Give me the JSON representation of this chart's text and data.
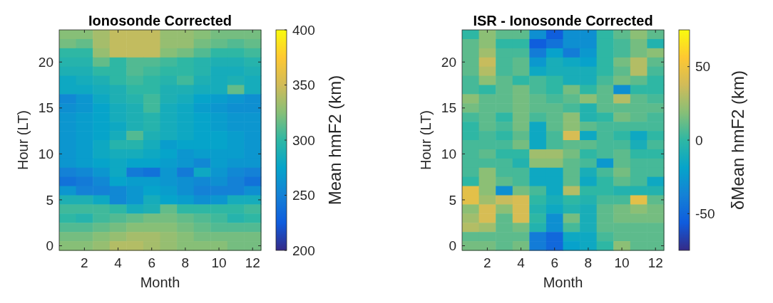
{
  "chart_data": [
    {
      "type": "heatmap",
      "title": "Ionosonde Corrected",
      "xlabel": "Month",
      "ylabel": "Hour (LT)",
      "clabel": "Mean hmF2 (km)",
      "categories": [
        null,
        "2",
        null,
        "4",
        null,
        "6",
        null,
        "8",
        null,
        "10",
        null,
        "12"
      ],
      "y_categories": [
        null,
        null,
        null,
        "20",
        null,
        null,
        null,
        null,
        "15",
        null,
        null,
        null,
        null,
        "10",
        null,
        null,
        null,
        null,
        "5",
        null,
        null,
        null,
        null,
        "0"
      ],
      "clim": [
        200,
        400
      ],
      "cticks": [
        200,
        250,
        300,
        350,
        400
      ],
      "cells": [
        [
          325,
          325,
          335,
          345,
          345,
          345,
          330,
          330,
          325,
          320,
          320,
          320
        ],
        [
          320,
          315,
          335,
          345,
          345,
          345,
          330,
          330,
          320,
          315,
          310,
          315
        ],
        [
          300,
          300,
          330,
          345,
          345,
          345,
          325,
          320,
          310,
          300,
          300,
          305
        ],
        [
          295,
          295,
          315,
          300,
          310,
          310,
          305,
          300,
          295,
          290,
          290,
          295
        ],
        [
          290,
          290,
          300,
          300,
          310,
          305,
          300,
          300,
          295,
          285,
          285,
          290
        ],
        [
          280,
          285,
          290,
          300,
          305,
          300,
          295,
          305,
          290,
          285,
          290,
          285
        ],
        [
          280,
          280,
          285,
          290,
          300,
          300,
          290,
          290,
          285,
          285,
          315,
          285
        ],
        [
          255,
          265,
          280,
          290,
          295,
          305,
          290,
          285,
          275,
          270,
          265,
          260
        ],
        [
          260,
          265,
          275,
          285,
          290,
          305,
          285,
          280,
          270,
          265,
          260,
          260
        ],
        [
          265,
          270,
          275,
          285,
          290,
          295,
          285,
          280,
          275,
          270,
          265,
          265
        ],
        [
          265,
          270,
          275,
          280,
          290,
          295,
          285,
          280,
          275,
          270,
          265,
          265
        ],
        [
          265,
          270,
          275,
          285,
          310,
          290,
          285,
          280,
          275,
          275,
          270,
          265
        ],
        [
          265,
          270,
          280,
          295,
          295,
          285,
          270,
          275,
          275,
          275,
          270,
          265
        ],
        [
          265,
          270,
          280,
          285,
          285,
          280,
          275,
          265,
          270,
          270,
          270,
          265
        ],
        [
          265,
          270,
          275,
          280,
          275,
          275,
          270,
          265,
          255,
          270,
          265,
          265
        ],
        [
          250,
          255,
          265,
          280,
          245,
          240,
          265,
          245,
          280,
          265,
          255,
          250
        ],
        [
          240,
          245,
          255,
          275,
          270,
          270,
          265,
          260,
          255,
          260,
          250,
          240
        ],
        [
          265,
          250,
          250,
          255,
          265,
          275,
          270,
          260,
          250,
          250,
          250,
          260
        ],
        [
          290,
          290,
          280,
          255,
          265,
          285,
          275,
          270,
          260,
          265,
          285,
          285
        ],
        [
          305,
          305,
          305,
          300,
          285,
          290,
          315,
          300,
          300,
          300,
          300,
          305
        ],
        [
          300,
          295,
          305,
          310,
          315,
          320,
          320,
          315,
          310,
          305,
          295,
          300
        ],
        [
          310,
          310,
          315,
          320,
          325,
          325,
          325,
          320,
          315,
          310,
          310,
          310
        ],
        [
          320,
          320,
          325,
          330,
          335,
          335,
          330,
          325,
          320,
          320,
          320,
          320
        ],
        [
          325,
          325,
          330,
          340,
          340,
          335,
          330,
          325,
          325,
          325,
          320,
          320
        ]
      ]
    },
    {
      "type": "heatmap",
      "title": "ISR - Ionosonde Corrected",
      "xlabel": "Month",
      "ylabel": "Hour (LT)",
      "clabel": "δMean hmF2 (km)",
      "categories": [
        null,
        "2",
        null,
        "4",
        null,
        "6",
        null,
        "8",
        null,
        "10",
        null,
        "12"
      ],
      "y_categories": [
        null,
        null,
        null,
        "20",
        null,
        null,
        null,
        null,
        "15",
        null,
        null,
        null,
        null,
        "10",
        null,
        null,
        null,
        null,
        "5",
        null,
        null,
        null,
        null,
        "0"
      ],
      "clim": [
        -75,
        75
      ],
      "cticks": [
        -50,
        0,
        50
      ],
      "cells": [
        [
          0,
          20,
          10,
          10,
          -30,
          -55,
          -30,
          -30,
          0,
          10,
          20,
          10
        ],
        [
          10,
          20,
          0,
          0,
          -55,
          -45,
          -30,
          -30,
          0,
          5,
          15,
          -5
        ],
        [
          10,
          25,
          5,
          5,
          -40,
          -20,
          -40,
          -25,
          0,
          5,
          15,
          20
        ],
        [
          10,
          35,
          5,
          10,
          -25,
          -10,
          -15,
          -20,
          0,
          15,
          30,
          10
        ],
        [
          10,
          30,
          5,
          10,
          -15,
          -10,
          -10,
          -10,
          0,
          10,
          30,
          5
        ],
        [
          5,
          20,
          10,
          0,
          5,
          0,
          -10,
          -10,
          5,
          15,
          10,
          0
        ],
        [
          5,
          0,
          10,
          15,
          5,
          0,
          15,
          0,
          10,
          -30,
          0,
          0
        ],
        [
          20,
          10,
          10,
          15,
          10,
          5,
          10,
          20,
          10,
          30,
          10,
          5
        ],
        [
          15,
          10,
          10,
          15,
          10,
          10,
          5,
          -5,
          10,
          10,
          10,
          10
        ],
        [
          5,
          10,
          0,
          15,
          5,
          10,
          20,
          -5,
          0,
          15,
          10,
          5
        ],
        [
          0,
          10,
          5,
          15,
          -15,
          10,
          20,
          10,
          5,
          5,
          5,
          5
        ],
        [
          0,
          5,
          0,
          10,
          -15,
          5,
          40,
          -15,
          5,
          0,
          -15,
          0
        ],
        [
          5,
          5,
          5,
          15,
          -15,
          5,
          10,
          10,
          5,
          5,
          -10,
          5
        ],
        [
          5,
          10,
          0,
          0,
          25,
          25,
          15,
          0,
          5,
          10,
          0,
          0
        ],
        [
          5,
          5,
          5,
          -5,
          20,
          20,
          10,
          5,
          -25,
          10,
          5,
          5
        ],
        [
          5,
          20,
          5,
          5,
          -15,
          -15,
          10,
          -10,
          5,
          15,
          5,
          5
        ],
        [
          0,
          20,
          10,
          5,
          -15,
          -15,
          10,
          -15,
          0,
          10,
          5,
          -15
        ],
        [
          45,
          20,
          -30,
          15,
          5,
          -15,
          30,
          0,
          0,
          -5,
          -5,
          -5
        ],
        [
          45,
          25,
          35,
          40,
          0,
          -10,
          0,
          -5,
          5,
          5,
          45,
          10
        ],
        [
          20,
          40,
          20,
          40,
          -5,
          -15,
          -5,
          -10,
          10,
          15,
          20,
          15
        ],
        [
          25,
          40,
          10,
          40,
          0,
          -30,
          15,
          -10,
          10,
          15,
          15,
          15
        ],
        [
          30,
          25,
          10,
          15,
          -5,
          -30,
          5,
          -10,
          10,
          10,
          10,
          10
        ],
        [
          10,
          10,
          10,
          10,
          -40,
          -50,
          -15,
          -15,
          5,
          10,
          10,
          10
        ],
        [
          15,
          15,
          10,
          15,
          -40,
          -50,
          -20,
          -15,
          0,
          20,
          10,
          10
        ]
      ]
    }
  ]
}
